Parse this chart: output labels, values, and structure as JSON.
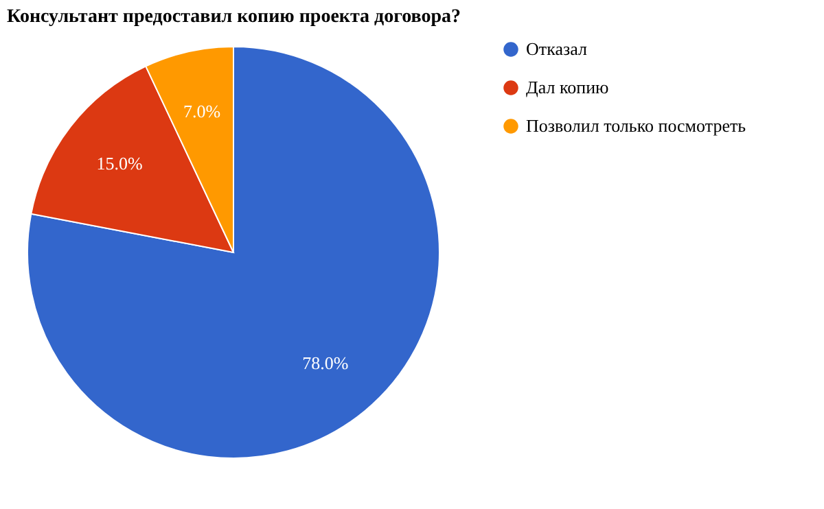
{
  "chart_data": {
    "type": "pie",
    "title": "Консультант предоставил копию проекта договора?",
    "categories": [
      "Отказал",
      "Дал копию",
      "Позволил только посмотреть"
    ],
    "values": [
      78,
      15,
      7
    ],
    "colors": [
      "#3366cc",
      "#dc3912",
      "#ff9900"
    ],
    "value_labels": [
      "78.0%",
      "15.0%",
      "7.0%"
    ],
    "legend": "right"
  }
}
